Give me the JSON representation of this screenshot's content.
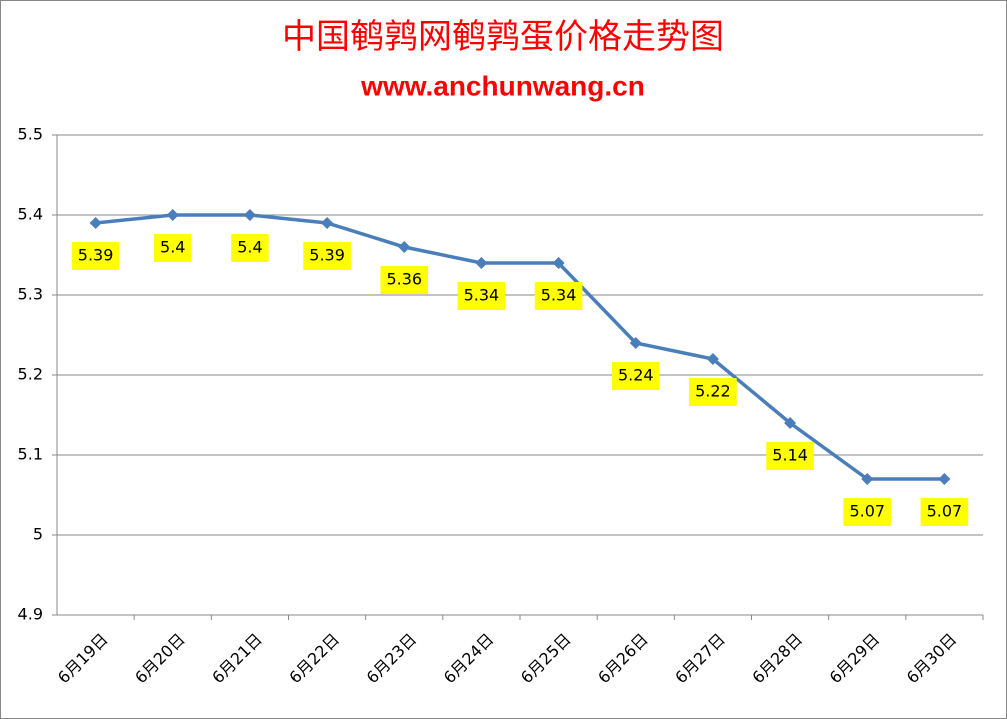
{
  "chart_data": {
    "type": "line",
    "title": "中国鹌鹑网鹌鹑蛋价格走势图",
    "subtitle": "www.anchunwang.cn",
    "categories": [
      "6月19日",
      "6月20日",
      "6月21日",
      "6月22日",
      "6月23日",
      "6月24日",
      "6月25日",
      "6月26日",
      "6月27日",
      "6月28日",
      "6月29日",
      "6月30日"
    ],
    "values": [
      5.39,
      5.4,
      5.4,
      5.39,
      5.36,
      5.34,
      5.34,
      5.24,
      5.22,
      5.14,
      5.07,
      5.07
    ],
    "color": "#4a7ebb",
    "label_color": "#ffff00",
    "ylim": [
      4.9,
      5.5
    ],
    "yticks": [
      4.9,
      5,
      5.1,
      5.2,
      5.3,
      5.4,
      5.5
    ],
    "grid": true
  }
}
